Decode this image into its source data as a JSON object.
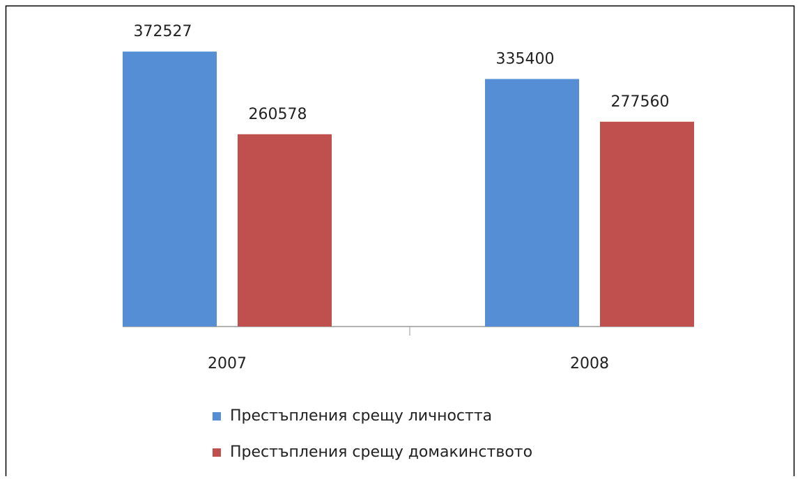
{
  "chart_data": {
    "type": "bar",
    "categories": [
      "2007",
      "2008"
    ],
    "series": [
      {
        "name": "Престъпления срещу личността",
        "color": "#558ed5",
        "values": [
          372527,
          335400
        ]
      },
      {
        "name": "Престъпления срещу домакинството",
        "color": "#c0504d",
        "values": [
          260578,
          277560
        ]
      }
    ],
    "ylim": [
      0,
      400000
    ],
    "legend": "bottom"
  }
}
